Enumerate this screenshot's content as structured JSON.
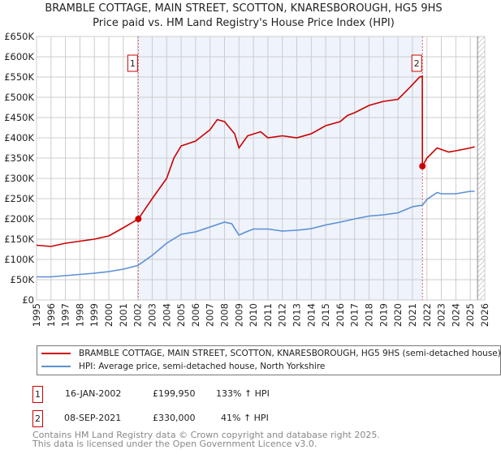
{
  "title": "BRAMBLE COTTAGE, MAIN STREET, SCOTTON, KNARESBOROUGH, HG5 9HS",
  "subtitle": "Price paid vs. HM Land Registry's House Price Index (HPI)",
  "chart_data": {
    "type": "line",
    "ylim": [
      0,
      650000
    ],
    "xlim": [
      1995,
      2026
    ],
    "yticks": [
      0,
      50000,
      100000,
      150000,
      200000,
      250000,
      300000,
      350000,
      400000,
      450000,
      500000,
      550000,
      600000,
      650000
    ],
    "ytick_labels": [
      "£0",
      "£50K",
      "£100K",
      "£150K",
      "£200K",
      "£250K",
      "£300K",
      "£350K",
      "£400K",
      "£450K",
      "£500K",
      "£550K",
      "£600K",
      "£650K"
    ],
    "xtick_labels": [
      "1995",
      "1996",
      "1997",
      "1998",
      "1999",
      "2000",
      "2001",
      "2002",
      "2003",
      "2004",
      "2005",
      "2006",
      "2007",
      "2008",
      "2009",
      "2010",
      "2011",
      "2012",
      "2013",
      "2014",
      "2015",
      "2016",
      "2017",
      "2018",
      "2019",
      "2020",
      "2021",
      "2022",
      "2023",
      "2024",
      "2025",
      "2026"
    ],
    "grid": true,
    "series": [
      {
        "name": "BRAMBLE COTTAGE, MAIN STREET, SCOTTON, KNARESBOROUGH, HG5 9HS (semi-detached house)",
        "color": "#cc0000",
        "x": [
          1995,
          1996,
          1997,
          1998,
          1999,
          2000,
          2001,
          2002.04,
          2003,
          2004,
          2004.5,
          2005,
          2006,
          2007,
          2007.5,
          2008,
          2008.7,
          2009,
          2009.6,
          2010.5,
          2011,
          2012,
          2013,
          2014,
          2015,
          2016,
          2016.5,
          2017,
          2018,
          2019,
          2020,
          2020.7,
          2021.5,
          2021.68,
          2021.69,
          2022,
          2022.7,
          2023.5,
          2024,
          2025,
          2025.3
        ],
        "y": [
          135000,
          132000,
          140000,
          145000,
          150000,
          158000,
          178000,
          199950,
          250000,
          300000,
          350000,
          380000,
          392000,
          420000,
          445000,
          440000,
          410000,
          375000,
          405000,
          415000,
          400000,
          405000,
          400000,
          410000,
          430000,
          440000,
          455000,
          462000,
          480000,
          490000,
          495000,
          520000,
          550000,
          552000,
          330000,
          350000,
          375000,
          365000,
          368000,
          375000,
          378000
        ]
      },
      {
        "name": "HPI: Average price, semi-detached house, North Yorkshire",
        "color": "#5b8fd4",
        "x": [
          1995,
          1996,
          1997,
          1998,
          1999,
          2000,
          2001,
          2002,
          2003,
          2004,
          2005,
          2006,
          2007,
          2008,
          2008.5,
          2009,
          2009.5,
          2010,
          2011,
          2012,
          2013,
          2014,
          2015,
          2016,
          2017,
          2018,
          2019,
          2020,
          2021,
          2021.7,
          2022,
          2022.7,
          2023,
          2024,
          2025,
          2025.3
        ],
        "y": [
          57000,
          57000,
          60000,
          63000,
          66000,
          70000,
          76000,
          85000,
          110000,
          140000,
          162000,
          168000,
          180000,
          192000,
          188000,
          160000,
          168000,
          175000,
          175000,
          170000,
          172000,
          176000,
          185000,
          192000,
          200000,
          207000,
          210000,
          215000,
          230000,
          234000,
          248000,
          265000,
          262000,
          262000,
          268000,
          268000
        ]
      }
    ],
    "annotations": [
      {
        "label": "1",
        "x": 2002.04,
        "y": 199950
      },
      {
        "label": "2",
        "x": 2021.69,
        "y": 330000
      }
    ]
  },
  "legend": {
    "red": "BRAMBLE COTTAGE, MAIN STREET, SCOTTON, KNARESBOROUGH, HG5 9HS (semi-detached house)",
    "blue": "HPI: Average price, semi-detached house, North Yorkshire"
  },
  "transactions": [
    {
      "num": "1",
      "date": "16-JAN-2002",
      "price": "£199,950",
      "hpi": "133% ↑ HPI"
    },
    {
      "num": "2",
      "date": "08-SEP-2021",
      "price": "£330,000",
      "hpi": "41% ↑ HPI"
    }
  ],
  "footer": [
    "Contains HM Land Registry data © Crown copyright and database right 2025.",
    "This data is licensed under the Open Government Licence v3.0."
  ]
}
